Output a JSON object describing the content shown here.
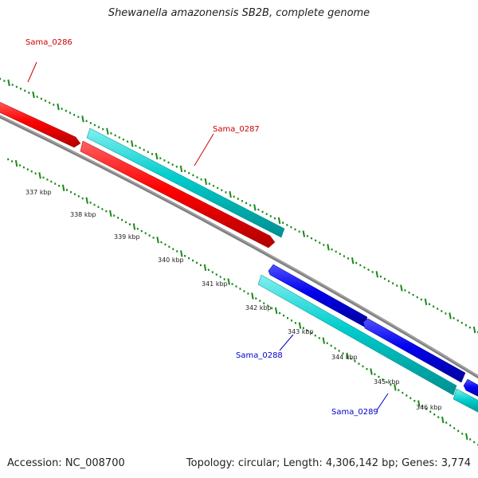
{
  "title": "Shewanella amazonensis SB2B, complete genome",
  "footer": {
    "accession": "Accession: NC_008700",
    "summary": "Topology: circular; Length: 4,306,142 bp; Genes: 3,774"
  },
  "colors": {
    "forward_gene": "#ff0000",
    "reverse_gene": "#0000ff",
    "cds": "#00cccc",
    "backbone": "#808080",
    "gc_ticks": "#1a8a1a",
    "forward_label": "#cc0000",
    "reverse_label": "#0000cc"
  },
  "genes": [
    {
      "name": "Sama_0286",
      "strand": "forward"
    },
    {
      "name": "Sama_0287",
      "strand": "forward"
    },
    {
      "name": "Sama_0288",
      "strand": "reverse"
    },
    {
      "name": "Sama_0289",
      "strand": "reverse"
    }
  ],
  "scale_labels": [
    "337 kbp",
    "338 kbp",
    "339 kbp",
    "340 kbp",
    "341 kbp",
    "342 kbp",
    "343 kbp",
    "344 kbp",
    "345 kbp",
    "346 kbp"
  ]
}
